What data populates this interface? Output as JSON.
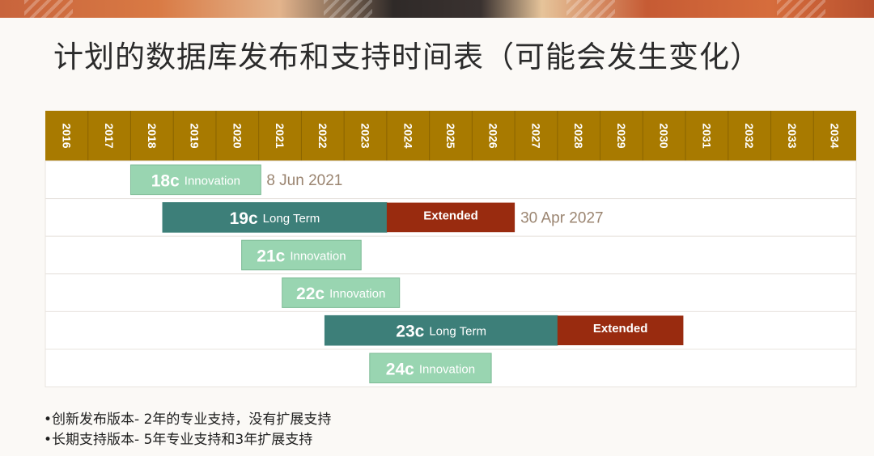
{
  "title": "计划的数据库发布和支持时间表（可能会发生变化）",
  "notes": [
    "•创新发布版本- 2年的专业支持，没有扩展支持",
    "•长期支持版本- 5年专业支持和3年扩展支持"
  ],
  "colors": {
    "header": "#a87a00",
    "innovation": "#99d5b1",
    "innovation_border": "#7dbb96",
    "long_term": "#3d7f79",
    "extended": "#992b0f",
    "end_label": "#9b8571"
  },
  "chart_data": {
    "type": "gantt",
    "years": [
      "2016",
      "2017",
      "2018",
      "2019",
      "2020",
      "2021",
      "2022",
      "2023",
      "2024",
      "2025",
      "2026",
      "2027",
      "2028",
      "2029",
      "2030",
      "2031",
      "2032",
      "2033",
      "2034"
    ],
    "rows": [
      {
        "release": "18c",
        "type_label": "Innovation",
        "kind": "innovation",
        "start": 2018.0,
        "end": 2021.05,
        "end_label": "8 Jun 2021"
      },
      {
        "release": "19c",
        "type_label": "Long Term",
        "kind": "long_term",
        "start": 2018.75,
        "end": 2024.0,
        "extended_label": "Extended",
        "extended_end": 2027.0,
        "end_label": "30 Apr 2027"
      },
      {
        "release": "21c",
        "type_label": "Innovation",
        "kind": "innovation",
        "start": 2020.6,
        "end": 2023.4
      },
      {
        "release": "22c",
        "type_label": "Innovation",
        "kind": "innovation",
        "start": 2021.55,
        "end": 2024.3
      },
      {
        "release": "23c",
        "type_label": "Long Term",
        "kind": "long_term",
        "start": 2022.55,
        "end": 2028.0,
        "extended_label": "Extended",
        "extended_end": 2030.95
      },
      {
        "release": "24c",
        "type_label": "Innovation",
        "kind": "innovation",
        "start": 2023.6,
        "end": 2026.45
      }
    ]
  }
}
